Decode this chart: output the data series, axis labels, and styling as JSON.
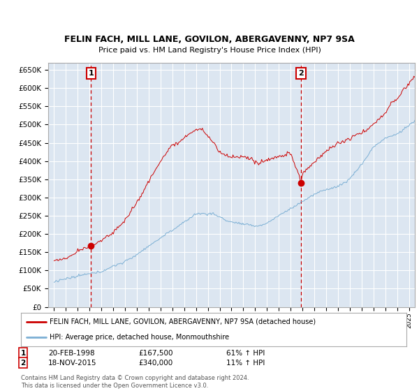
{
  "title1": "FELIN FACH, MILL LANE, GOVILON, ABERGAVENNY, NP7 9SA",
  "title2": "Price paid vs. HM Land Registry's House Price Index (HPI)",
  "background_color": "#dce6f1",
  "plot_bg_color": "#dce6f1",
  "line_color_red": "#cc0000",
  "line_color_blue": "#7bafd4",
  "sale1_price": 167500,
  "sale1_label": "1",
  "sale1_year": 1998.13,
  "sale2_price": 340000,
  "sale2_label": "2",
  "sale2_year": 2015.88,
  "ylim_min": 0,
  "ylim_max": 670000,
  "xlim_min": 1994.5,
  "xlim_max": 2025.5,
  "footer_line1": "Contains HM Land Registry data © Crown copyright and database right 2024.",
  "footer_line2": "This data is licensed under the Open Government Licence v3.0.",
  "legend_red": "FELIN FACH, MILL LANE, GOVILON, ABERGAVENNY, NP7 9SA (detached house)",
  "legend_blue": "HPI: Average price, detached house, Monmouthshire",
  "table_1_date": "20-FEB-1998",
  "table_1_price": "£167,500",
  "table_1_hpi": "61% ↑ HPI",
  "table_2_date": "18-NOV-2015",
  "table_2_price": "£340,000",
  "table_2_hpi": "11% ↑ HPI"
}
